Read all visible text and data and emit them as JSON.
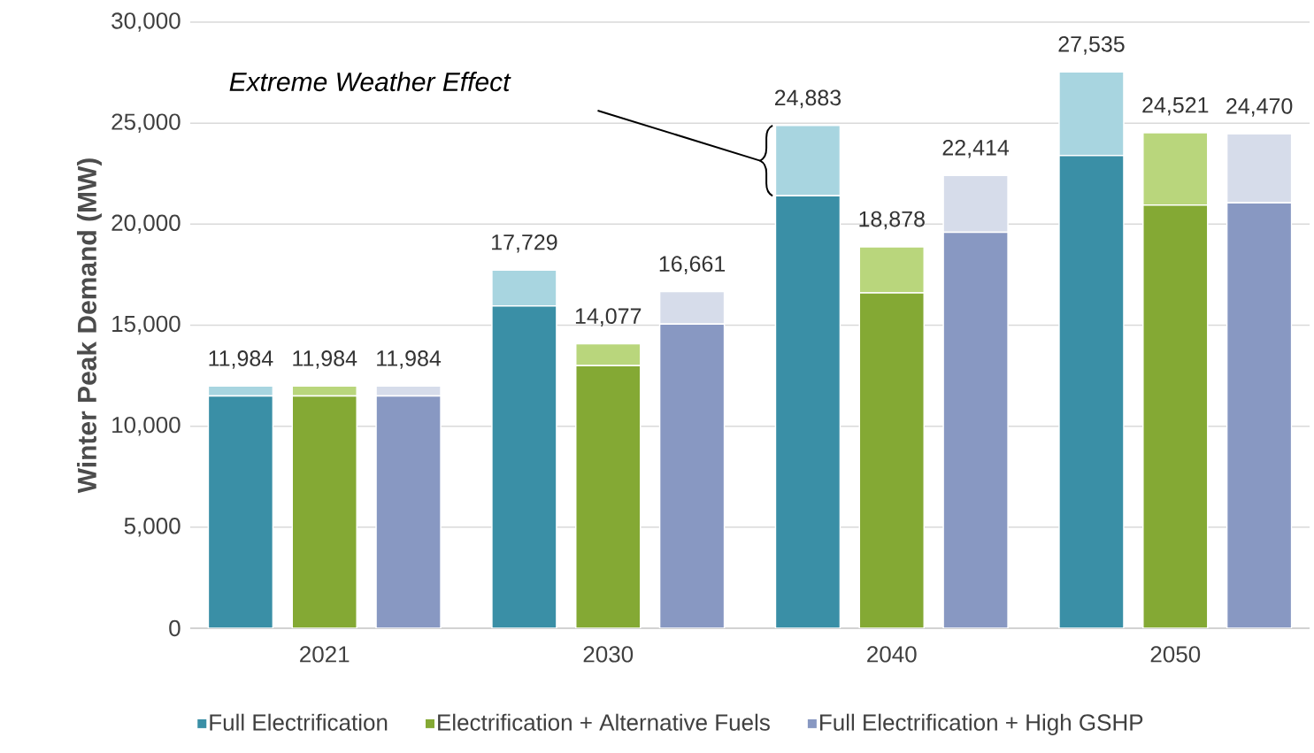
{
  "chart_data": {
    "type": "bar",
    "stacked": true,
    "ylabel": "Winter Peak Demand (MW)",
    "categories": [
      null,
      "2021",
      null,
      null,
      "2030",
      null,
      null,
      "2040",
      null,
      null,
      "2050",
      null
    ],
    "series": [
      {
        "name": "Full Electrification",
        "color": "#3a8fa6",
        "values": [
          11500,
          null,
          null,
          15950,
          null,
          null,
          21400,
          null,
          null,
          23400,
          null,
          null
        ]
      },
      {
        "color": "#a8d5e0",
        "values": [
          484,
          null,
          null,
          1779,
          null,
          null,
          3483,
          null,
          null,
          4135,
          null,
          null
        ]
      },
      {
        "name": "Electrification + Alternative Fuels",
        "color": "#84a934",
        "values": [
          null,
          11500,
          null,
          null,
          13000,
          null,
          null,
          16600,
          null,
          null,
          20950,
          null
        ]
      },
      {
        "color": "#b9d67c",
        "values": [
          null,
          484,
          null,
          null,
          1077,
          null,
          null,
          2278,
          null,
          null,
          3571,
          null
        ]
      },
      {
        "name": "Full Electrification + High GSHP",
        "color": "#8898c2",
        "values": [
          null,
          null,
          11500,
          null,
          null,
          15050,
          null,
          null,
          19600,
          null,
          null,
          21050
        ]
      },
      {
        "color": "#d6dcea",
        "values": [
          null,
          null,
          484,
          null,
          null,
          1611,
          null,
          null,
          2814,
          null,
          null,
          3420
        ]
      }
    ],
    "totals": [
      "11,984",
      "11,984",
      "11,984",
      "17,729",
      "14,077",
      "16,661",
      "24,883",
      "18,878",
      "22,414",
      "27,535",
      "24,521",
      "24,470"
    ],
    "ylim": [
      0,
      30000
    ],
    "yticks": [
      0,
      {
        "value": 5000,
        "label": "5,000"
      },
      {
        "value": 10000,
        "label": "10,000"
      },
      {
        "value": 15000,
        "label": "15,000"
      },
      {
        "value": 20000,
        "label": "20,000"
      },
      {
        "value": 25000,
        "label": "25,000"
      },
      {
        "value": 30000,
        "label": "30,000"
      }
    ],
    "grid": "y",
    "legend": "bottom",
    "annotations": [
      "Extreme Weather Effect"
    ]
  }
}
